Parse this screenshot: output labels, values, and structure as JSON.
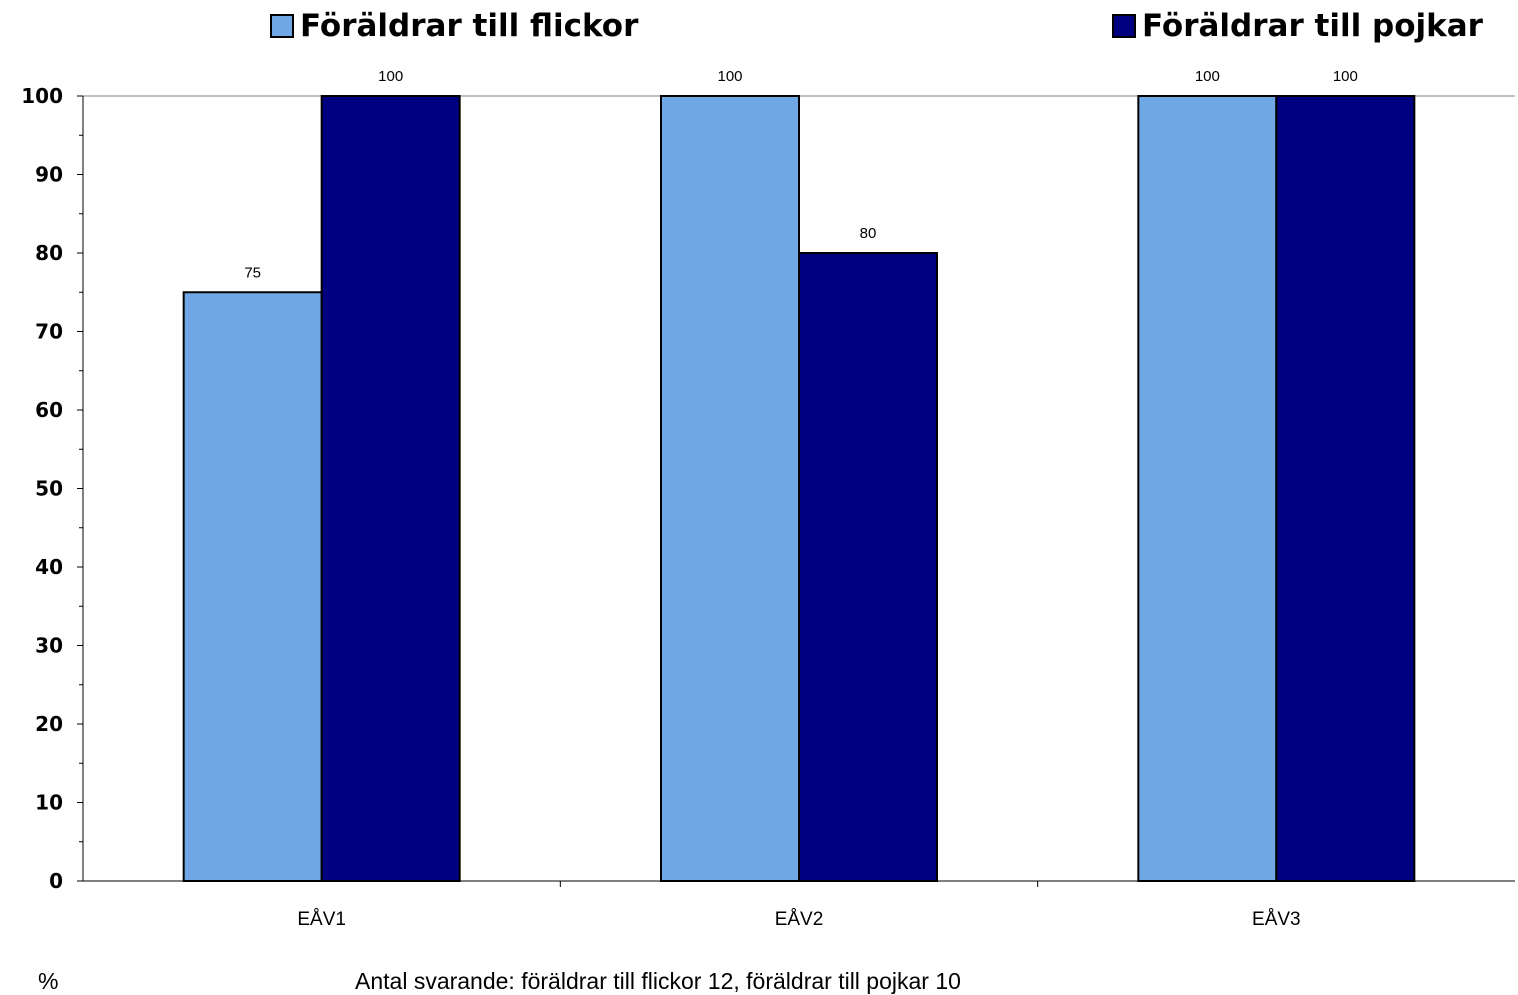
{
  "chart_data": {
    "type": "bar",
    "categories": [
      "EÅV1",
      "EÅV2",
      "EÅV3"
    ],
    "series": [
      {
        "name": "Föräldrar till flickor",
        "color": "#6fa8e4",
        "values": [
          75,
          100,
          100
        ]
      },
      {
        "name": "Föräldrar till pojkar",
        "color": "#000080",
        "values": [
          100,
          80,
          100
        ]
      }
    ],
    "ylim": [
      0,
      100
    ],
    "yticks": [
      0,
      10,
      20,
      30,
      40,
      50,
      60,
      70,
      80,
      90,
      100
    ],
    "ylabel": "%",
    "note": "Antal svarande: föräldrar till flickor 12, föräldrar till pojkar 10",
    "grid": false,
    "legend_position": "top"
  }
}
